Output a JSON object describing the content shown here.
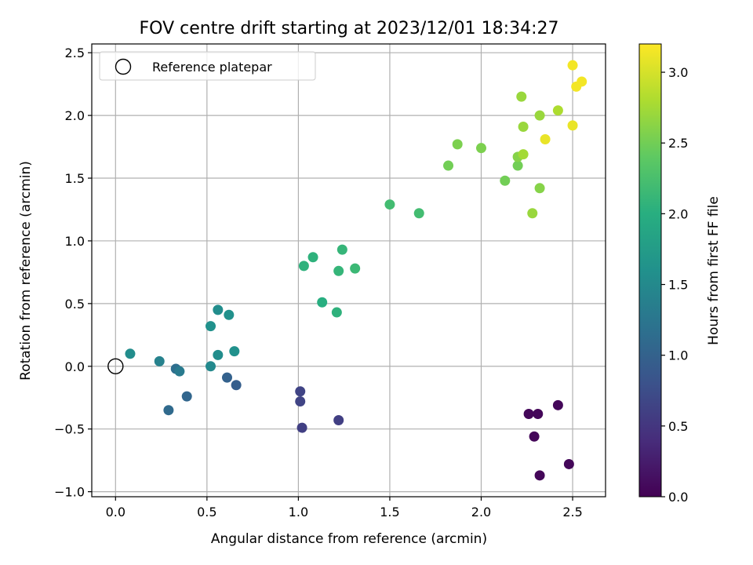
{
  "chart_data": {
    "type": "scatter",
    "title": "FOV centre drift starting at 2023/12/01 18:34:27",
    "xlabel": "Angular distance from reference (arcmin)",
    "ylabel": "Rotation from reference (arcmin)",
    "xlim": [
      -0.13,
      2.68
    ],
    "ylim": [
      -1.04,
      2.57
    ],
    "xticks": [
      0.0,
      0.5,
      1.0,
      1.5,
      2.0,
      2.5
    ],
    "xtick_labels": [
      "0.0",
      "0.5",
      "1.0",
      "1.5",
      "2.0",
      "2.5"
    ],
    "yticks": [
      -1.0,
      -0.5,
      0.0,
      0.5,
      1.0,
      1.5,
      2.0,
      2.5
    ],
    "ytick_labels": [
      "−1.0",
      "−0.5",
      "0.0",
      "0.5",
      "1.0",
      "1.5",
      "2.0",
      "2.5"
    ],
    "grid": true,
    "legend": {
      "position": "top-left",
      "entries": [
        {
          "label": "Reference platepar",
          "marker": "open-circle"
        }
      ]
    },
    "reference_point": {
      "x": 0.0,
      "y": 0.0
    },
    "colorbar": {
      "label": "Hours from first FF file",
      "colormap": "viridis",
      "range": [
        0.0,
        3.2
      ],
      "ticks": [
        0.0,
        0.5,
        1.0,
        1.5,
        2.0,
        2.5,
        3.0
      ],
      "tick_labels": [
        "0.0",
        "0.5",
        "1.0",
        "1.5",
        "2.0",
        "2.5",
        "3.0"
      ]
    },
    "points": [
      {
        "x": 2.26,
        "y": -0.38,
        "c": 0.05
      },
      {
        "x": 2.31,
        "y": -0.38,
        "c": 0.05
      },
      {
        "x": 2.42,
        "y": -0.31,
        "c": 0.05
      },
      {
        "x": 2.29,
        "y": -0.56,
        "c": 0.05
      },
      {
        "x": 2.32,
        "y": -0.87,
        "c": 0.05
      },
      {
        "x": 2.48,
        "y": -0.78,
        "c": 0.05
      },
      {
        "x": 1.22,
        "y": -0.43,
        "c": 0.6
      },
      {
        "x": 1.02,
        "y": -0.49,
        "c": 0.6
      },
      {
        "x": 1.01,
        "y": -0.28,
        "c": 0.65
      },
      {
        "x": 1.01,
        "y": -0.2,
        "c": 0.65
      },
      {
        "x": 0.66,
        "y": -0.15,
        "c": 0.95
      },
      {
        "x": 0.61,
        "y": -0.09,
        "c": 1.0
      },
      {
        "x": 0.39,
        "y": -0.24,
        "c": 1.05
      },
      {
        "x": 0.29,
        "y": -0.35,
        "c": 1.1
      },
      {
        "x": 0.33,
        "y": -0.02,
        "c": 1.15
      },
      {
        "x": 0.35,
        "y": -0.04,
        "c": 1.3
      },
      {
        "x": 0.24,
        "y": 0.04,
        "c": 1.4
      },
      {
        "x": 0.52,
        "y": -0.0,
        "c": 1.5
      },
      {
        "x": 0.08,
        "y": 0.1,
        "c": 1.55
      },
      {
        "x": 0.56,
        "y": 0.09,
        "c": 1.55
      },
      {
        "x": 0.65,
        "y": 0.12,
        "c": 1.6
      },
      {
        "x": 0.52,
        "y": 0.32,
        "c": 1.6
      },
      {
        "x": 0.56,
        "y": 0.45,
        "c": 1.55
      },
      {
        "x": 0.62,
        "y": 0.41,
        "c": 1.6
      },
      {
        "x": 1.13,
        "y": 0.51,
        "c": 2.0
      },
      {
        "x": 1.21,
        "y": 0.43,
        "c": 2.05
      },
      {
        "x": 1.03,
        "y": 0.8,
        "c": 2.05
      },
      {
        "x": 1.08,
        "y": 0.87,
        "c": 2.05
      },
      {
        "x": 1.22,
        "y": 0.76,
        "c": 2.1
      },
      {
        "x": 1.24,
        "y": 0.93,
        "c": 2.1
      },
      {
        "x": 1.31,
        "y": 0.78,
        "c": 2.15
      },
      {
        "x": 1.5,
        "y": 1.29,
        "c": 2.2
      },
      {
        "x": 1.66,
        "y": 1.22,
        "c": 2.2
      },
      {
        "x": 1.82,
        "y": 1.6,
        "c": 2.5
      },
      {
        "x": 1.87,
        "y": 1.77,
        "c": 2.55
      },
      {
        "x": 2.0,
        "y": 1.74,
        "c": 2.55
      },
      {
        "x": 2.13,
        "y": 1.48,
        "c": 2.5
      },
      {
        "x": 2.2,
        "y": 1.6,
        "c": 2.5
      },
      {
        "x": 2.2,
        "y": 1.67,
        "c": 2.6
      },
      {
        "x": 2.23,
        "y": 1.69,
        "c": 2.75
      },
      {
        "x": 2.22,
        "y": 2.15,
        "c": 2.7
      },
      {
        "x": 2.23,
        "y": 1.91,
        "c": 2.7
      },
      {
        "x": 2.32,
        "y": 1.42,
        "c": 2.6
      },
      {
        "x": 2.28,
        "y": 1.22,
        "c": 2.7
      },
      {
        "x": 2.32,
        "y": 2.0,
        "c": 2.7
      },
      {
        "x": 2.42,
        "y": 2.04,
        "c": 2.8
      },
      {
        "x": 2.35,
        "y": 1.81,
        "c": 3.1
      },
      {
        "x": 2.5,
        "y": 1.92,
        "c": 3.1
      },
      {
        "x": 2.5,
        "y": 2.4,
        "c": 3.15
      },
      {
        "x": 2.52,
        "y": 2.23,
        "c": 3.15
      },
      {
        "x": 2.55,
        "y": 2.27,
        "c": 3.15
      }
    ]
  }
}
